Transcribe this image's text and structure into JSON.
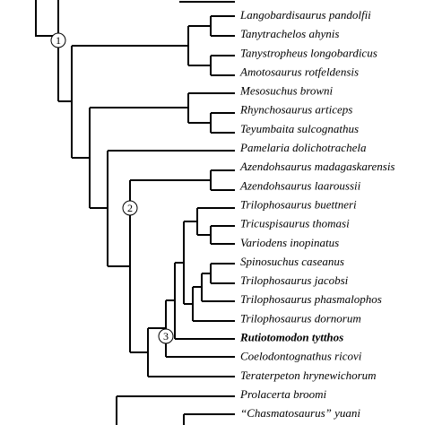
{
  "taxa": [
    "Langobardisaurus pandolfii",
    "Tanytrachelos ahynis",
    "Tanystropheus longobardicus",
    "Amotosaurus rotfeldensis",
    "Mesosuchus browni",
    "Rhynchosaurus articeps",
    "Teyumbaita sulcognathus",
    "Pamelaria dolichotrachela",
    "Azendohsaurus madagaskarensis",
    "Azendohsaurus laaroussii",
    "Trilophosaurus buettneri",
    "Tricuspisaurus thomasi",
    "Variodens inopinatus",
    "Spinosuchus caseanus",
    "Trilophosaurus jacobsi",
    "Trilophosaurus phasmalophos",
    "Trilophosaurus dornorum",
    "Rutiotomodon tytthos",
    "Coelodontognathus ricovi",
    "Teraterpeton hrynewichorum",
    "Prolacerta broomi",
    "“Chasmatosaurus” yuani"
  ],
  "nodes": [
    "1",
    "2",
    "3"
  ]
}
